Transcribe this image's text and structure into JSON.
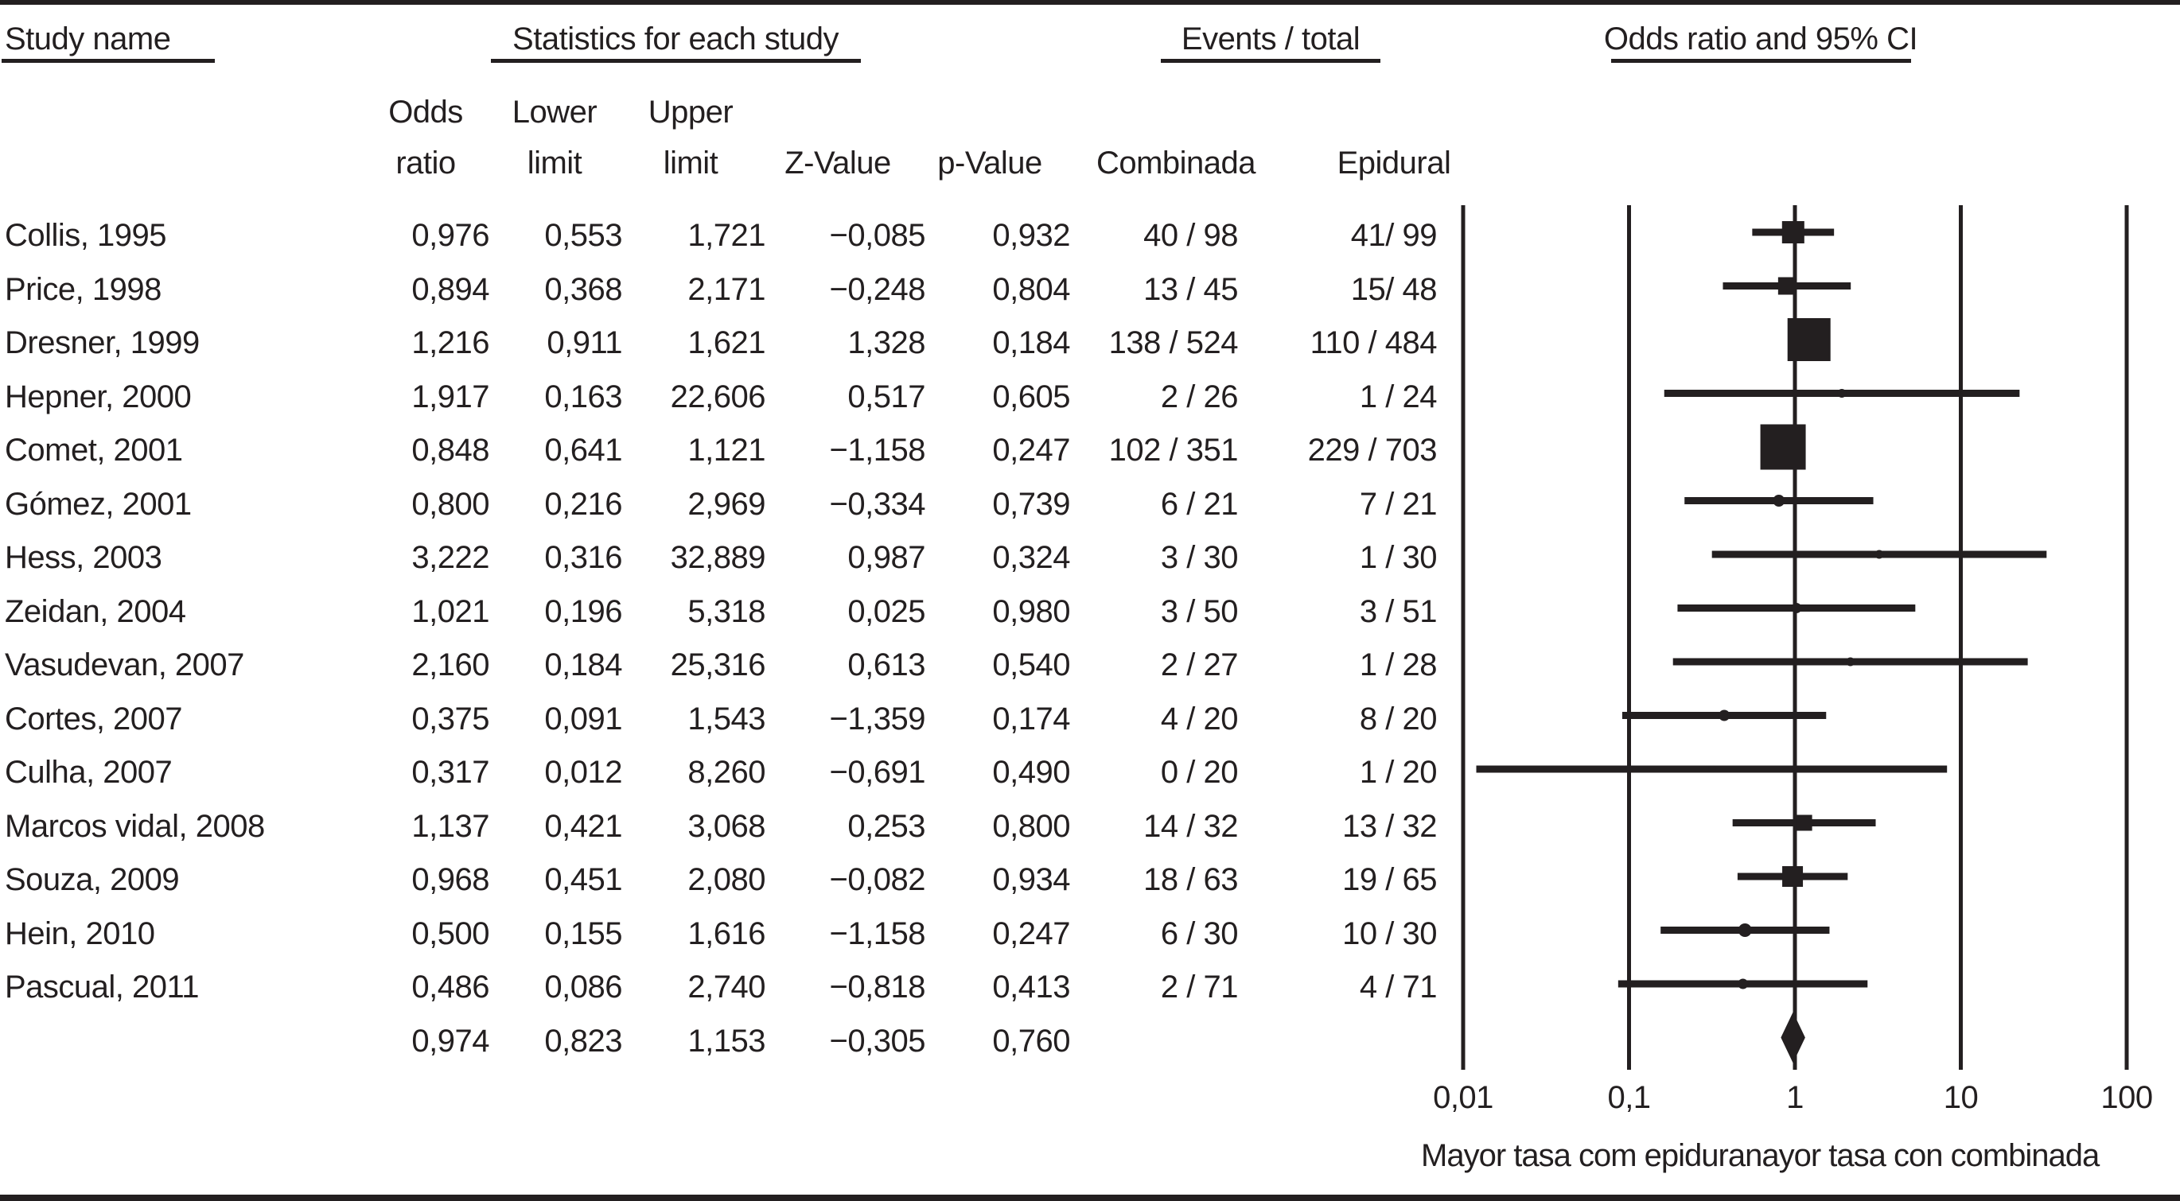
{
  "colors": {
    "ink": "#231f20",
    "background": "#ffffff"
  },
  "header": {
    "study_name": "Study name",
    "statistics": "Statistics for each study",
    "events_total": "Events / total",
    "or_ci": "Odds ratio and 95% CI",
    "col_or_1": "Odds",
    "col_or_2": "ratio",
    "col_lower_1": "Lower",
    "col_lower_2": "limit",
    "col_upper_1": "Upper",
    "col_upper_2": "limit",
    "col_z": "Z-Value",
    "col_p": "p-Value",
    "col_combinada": "Combinada",
    "col_epidural": "Epidural"
  },
  "table": {
    "rows": [
      {
        "study": "Collis, 1995",
        "or": "0,976",
        "lower": "0,553",
        "upper": "1,721",
        "z": "−0,085",
        "p": "0,932",
        "combinada": "40 / 98",
        "epidural": "41/ 99"
      },
      {
        "study": "Price, 1998",
        "or": "0,894",
        "lower": "0,368",
        "upper": "2,171",
        "z": "−0,248",
        "p": "0,804",
        "combinada": "13 / 45",
        "epidural": "15/ 48"
      },
      {
        "study": "Dresner, 1999",
        "or": "1,216",
        "lower": "0,911",
        "upper": "1,621",
        "z": "1,328",
        "p": "0,184",
        "combinada": "138 / 524",
        "epidural": "110 / 484"
      },
      {
        "study": "Hepner, 2000",
        "or": "1,917",
        "lower": "0,163",
        "upper": "22,606",
        "z": "0,517",
        "p": "0,605",
        "combinada": "2 / 26",
        "epidural": "1 / 24"
      },
      {
        "study": "Comet, 2001",
        "or": "0,848",
        "lower": "0,641",
        "upper": "1,121",
        "z": "−1,158",
        "p": "0,247",
        "combinada": "102 / 351",
        "epidural": "229 / 703"
      },
      {
        "study": "Gómez, 2001",
        "or": "0,800",
        "lower": "0,216",
        "upper": "2,969",
        "z": "−0,334",
        "p": "0,739",
        "combinada": "6 / 21",
        "epidural": "7 / 21"
      },
      {
        "study": "Hess, 2003",
        "or": "3,222",
        "lower": "0,316",
        "upper": "32,889",
        "z": "0,987",
        "p": "0,324",
        "combinada": "3 / 30",
        "epidural": "1 / 30"
      },
      {
        "study": "Zeidan, 2004",
        "or": "1,021",
        "lower": "0,196",
        "upper": "5,318",
        "z": "0,025",
        "p": "0,980",
        "combinada": "3 / 50",
        "epidural": "3 / 51"
      },
      {
        "study": "Vasudevan, 2007",
        "or": "2,160",
        "lower": "0,184",
        "upper": "25,316",
        "z": "0,613",
        "p": "0,540",
        "combinada": "2 / 27",
        "epidural": "1 / 28"
      },
      {
        "study": "Cortes, 2007",
        "or": "0,375",
        "lower": "0,091",
        "upper": "1,543",
        "z": "−1,359",
        "p": "0,174",
        "combinada": "4 / 20",
        "epidural": "8 / 20"
      },
      {
        "study": "Culha, 2007",
        "or": "0,317",
        "lower": "0,012",
        "upper": "8,260",
        "z": "−0,691",
        "p": "0,490",
        "combinada": "0 / 20",
        "epidural": "1 / 20"
      },
      {
        "study": "Marcos vidal, 2008",
        "or": "1,137",
        "lower": "0,421",
        "upper": "3,068",
        "z": "0,253",
        "p": "0,800",
        "combinada": "14 / 32",
        "epidural": "13 / 32"
      },
      {
        "study": "Souza, 2009",
        "or": "0,968",
        "lower": "0,451",
        "upper": "2,080",
        "z": "−0,082",
        "p": "0,934",
        "combinada": "18 / 63",
        "epidural": "19 / 65"
      },
      {
        "study": "Hein, 2010",
        "or": "0,500",
        "lower": "0,155",
        "upper": "1,616",
        "z": "−1,158",
        "p": "0,247",
        "combinada": "6 / 30",
        "epidural": "10 / 30"
      },
      {
        "study": "Pascual, 2011",
        "or": "0,486",
        "lower": "0,086",
        "upper": "2,740",
        "z": "−0,818",
        "p": "0,413",
        "combinada": "2 / 71",
        "epidural": "4 / 71"
      }
    ],
    "summary": {
      "study": "",
      "or": "0,974",
      "lower": "0,823",
      "upper": "1,153",
      "z": "−0,305",
      "p": "0,760",
      "combinada": "",
      "epidural": ""
    }
  },
  "axis_labels": [
    "0,01",
    "0,1",
    "1",
    "10",
    "100"
  ],
  "footer_caption": "Mayor tasa com epiduranayor tasa con combinada",
  "chart_data": {
    "type": "forest",
    "title": "Odds ratio and 95% CI",
    "x_scale": "log10",
    "xlim": [
      0.01,
      100
    ],
    "x_ticks": [
      0.01,
      0.1,
      1,
      10,
      100
    ],
    "x_tick_labels": [
      "0,01",
      "0,1",
      "1",
      "10",
      "100"
    ],
    "null_line": 1,
    "footer_left_meaning": "Mayor tasa com epidural",
    "footer_right_meaning": "Mayor tasa con combinada",
    "groups": [
      "Combinada",
      "Epidural"
    ],
    "studies": [
      {
        "name": "Collis, 1995",
        "or": 0.976,
        "lower": 0.553,
        "upper": 1.721,
        "z": -0.085,
        "p": 0.932,
        "events_combinada": 40,
        "total_combinada": 98,
        "events_epidural": 41,
        "total_epidural": 99,
        "marker_px": 28
      },
      {
        "name": "Price, 1998",
        "or": 0.894,
        "lower": 0.368,
        "upper": 2.171,
        "z": -0.248,
        "p": 0.804,
        "events_combinada": 13,
        "total_combinada": 45,
        "events_epidural": 15,
        "total_epidural": 48,
        "marker_px": 22
      },
      {
        "name": "Dresner, 1999",
        "or": 1.216,
        "lower": 0.911,
        "upper": 1.621,
        "z": 1.328,
        "p": 0.184,
        "events_combinada": 138,
        "total_combinada": 524,
        "events_epidural": 110,
        "total_epidural": 484,
        "marker_px": 54
      },
      {
        "name": "Hepner, 2000",
        "or": 1.917,
        "lower": 0.163,
        "upper": 22.606,
        "z": 0.517,
        "p": 0.605,
        "events_combinada": 2,
        "total_combinada": 26,
        "events_epidural": 1,
        "total_epidural": 24,
        "marker_px": 11
      },
      {
        "name": "Comet, 2001",
        "or": 0.848,
        "lower": 0.641,
        "upper": 1.121,
        "z": -1.158,
        "p": 0.247,
        "events_combinada": 102,
        "total_combinada": 351,
        "events_epidural": 229,
        "total_epidural": 703,
        "marker_px": 57
      },
      {
        "name": "Gómez, 2001",
        "or": 0.8,
        "lower": 0.216,
        "upper": 2.969,
        "z": -0.334,
        "p": 0.739,
        "events_combinada": 6,
        "total_combinada": 21,
        "events_epidural": 7,
        "total_epidural": 21,
        "marker_px": 15
      },
      {
        "name": "Hess, 2003",
        "or": 3.222,
        "lower": 0.316,
        "upper": 32.889,
        "z": 0.987,
        "p": 0.324,
        "events_combinada": 3,
        "total_combinada": 30,
        "events_epidural": 1,
        "total_epidural": 30,
        "marker_px": 11
      },
      {
        "name": "Zeidan, 2004",
        "or": 1.021,
        "lower": 0.196,
        "upper": 5.318,
        "z": 0.025,
        "p": 0.98,
        "events_combinada": 3,
        "total_combinada": 50,
        "events_epidural": 3,
        "total_epidural": 51,
        "marker_px": 13
      },
      {
        "name": "Vasudevan, 2007",
        "or": 2.16,
        "lower": 0.184,
        "upper": 25.316,
        "z": 0.613,
        "p": 0.54,
        "events_combinada": 2,
        "total_combinada": 27,
        "events_epidural": 1,
        "total_epidural": 28,
        "marker_px": 11
      },
      {
        "name": "Cortes, 2007",
        "or": 0.375,
        "lower": 0.091,
        "upper": 1.543,
        "z": -1.359,
        "p": 0.174,
        "events_combinada": 4,
        "total_combinada": 20,
        "events_epidural": 8,
        "total_epidural": 20,
        "marker_px": 14
      },
      {
        "name": "Culha, 2007",
        "or": 0.317,
        "lower": 0.012,
        "upper": 8.26,
        "z": -0.691,
        "p": 0.49,
        "events_combinada": 0,
        "total_combinada": 20,
        "events_epidural": 1,
        "total_epidural": 20,
        "marker_px": 9
      },
      {
        "name": "Marcos vidal, 2008",
        "or": 1.137,
        "lower": 0.421,
        "upper": 3.068,
        "z": 0.253,
        "p": 0.8,
        "events_combinada": 14,
        "total_combinada": 32,
        "events_epidural": 13,
        "total_epidural": 32,
        "marker_px": 20
      },
      {
        "name": "Souza, 2009",
        "or": 0.968,
        "lower": 0.451,
        "upper": 2.08,
        "z": -0.082,
        "p": 0.934,
        "events_combinada": 18,
        "total_combinada": 63,
        "events_epidural": 19,
        "total_epidural": 65,
        "marker_px": 26
      },
      {
        "name": "Hein, 2010",
        "or": 0.5,
        "lower": 0.155,
        "upper": 1.616,
        "z": -1.158,
        "p": 0.247,
        "events_combinada": 6,
        "total_combinada": 30,
        "events_epidural": 10,
        "total_epidural": 30,
        "marker_px": 17
      },
      {
        "name": "Pascual, 2011",
        "or": 0.486,
        "lower": 0.086,
        "upper": 2.74,
        "z": -0.818,
        "p": 0.413,
        "events_combinada": 2,
        "total_combinada": 71,
        "events_epidural": 4,
        "total_epidural": 71,
        "marker_px": 13
      }
    ],
    "summary": {
      "or": 0.974,
      "lower": 0.823,
      "upper": 1.153,
      "z": -0.305,
      "p": 0.76
    }
  }
}
